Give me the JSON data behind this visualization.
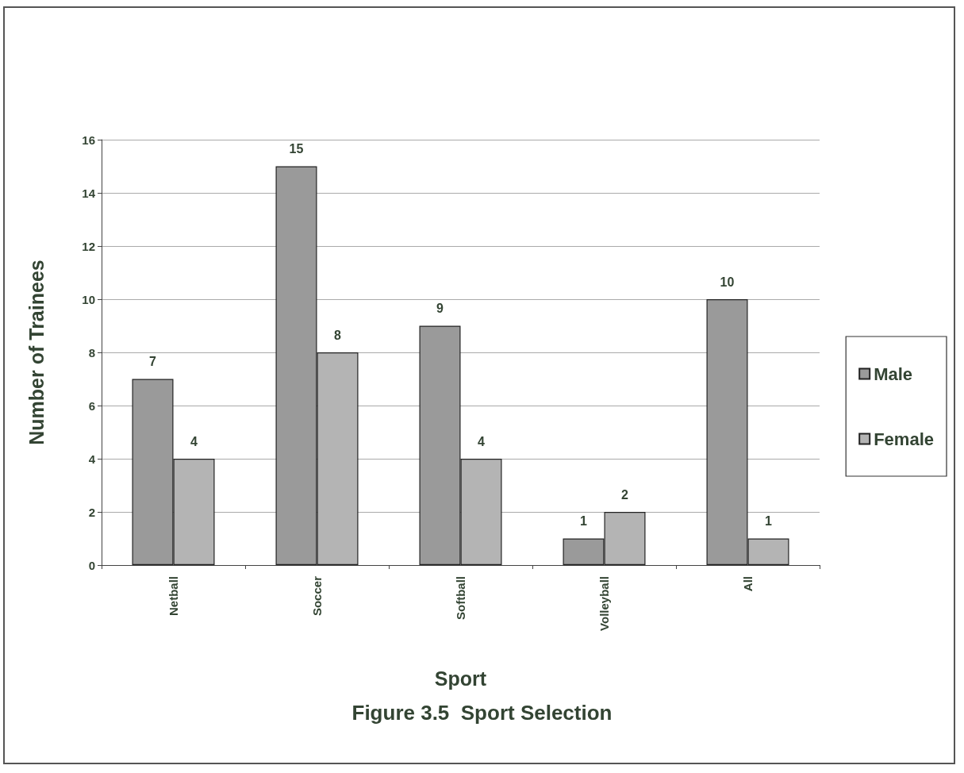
{
  "chart_data": {
    "type": "bar",
    "title": "Figure 3.5  Sport Selection",
    "xlabel": "Sport",
    "ylabel": "Number of Trainees",
    "categories": [
      "Netball",
      "Soccer",
      "Softball",
      "Volleyball",
      "All"
    ],
    "series": [
      {
        "name": "Male",
        "color": "#9a9a9a",
        "values": [
          7,
          15,
          9,
          1,
          10
        ]
      },
      {
        "name": "Female",
        "color": "#b4b4b4",
        "values": [
          4,
          8,
          4,
          2,
          1
        ]
      }
    ],
    "ylim": [
      0,
      16
    ],
    "yticks": [
      0,
      2,
      4,
      6,
      8,
      10,
      12,
      14,
      16
    ],
    "grid": "y",
    "legend": "right",
    "data_labels": true
  }
}
